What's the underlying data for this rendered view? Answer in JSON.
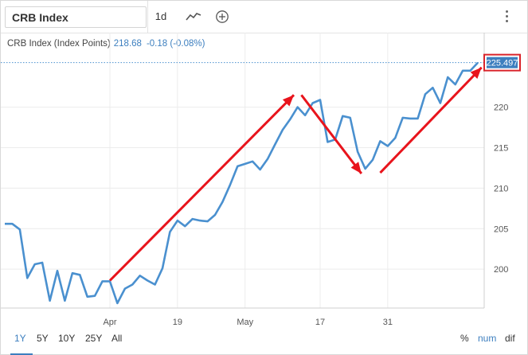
{
  "search": {
    "value": "CRB Index"
  },
  "toolbar": {
    "interval_label": "1d",
    "chart_type_icon": "line-chart-icon",
    "add_icon": "plus-circle-icon",
    "menu_icon": "vertical-dots-icon"
  },
  "legend": {
    "name": "CRB Index (Index Points)",
    "price": "218.68",
    "change": "-0.18 (-0.08%)"
  },
  "ranges": [
    "1Y",
    "5Y",
    "10Y",
    "25Y",
    "All"
  ],
  "active_range": "1Y",
  "options": [
    "%",
    "num",
    "dif"
  ],
  "active_option": "num",
  "colors": {
    "line": "#4a90cf",
    "arrow": "#e8141c",
    "last_price_bg": "#3d7fbf",
    "last_price_border": "#d9242b"
  },
  "chart_data": {
    "type": "line",
    "title": "",
    "xlabel": "",
    "ylabel": "",
    "ylim": [
      195.2,
      229.2
    ],
    "yticks": [
      200,
      205,
      210,
      215,
      220
    ],
    "ytick_labels": [
      "200",
      "205",
      "210",
      "215",
      "220"
    ],
    "xticks": [
      {
        "index": 14,
        "label": "Apr"
      },
      {
        "index": 23,
        "label": "19"
      },
      {
        "index": 32,
        "label": "May"
      },
      {
        "index": 42,
        "label": "17"
      },
      {
        "index": 51,
        "label": "31"
      }
    ],
    "last_value_label": "225.497",
    "grid": true,
    "series": [
      {
        "values": [
          205.6,
          205.6,
          204.9,
          198.9,
          200.6,
          200.8,
          196.1,
          199.8,
          196.1,
          199.5,
          199.3,
          196.6,
          196.7,
          198.5,
          198.5,
          195.8,
          197.6,
          198.1,
          199.2,
          198.6,
          198.1,
          200.1,
          204.6,
          206.0,
          205.3,
          206.2,
          206.0,
          205.9,
          206.7,
          208.3,
          210.4,
          212.7,
          213.0,
          213.3,
          212.3,
          213.6,
          215.4,
          217.2,
          218.5,
          220.0,
          219.0,
          220.5,
          220.9,
          215.7,
          216.0,
          218.9,
          218.7,
          214.5,
          212.4,
          213.5,
          215.8,
          215.2,
          216.2,
          218.7,
          218.6,
          218.6,
          221.6,
          222.4,
          220.5,
          223.7,
          222.8,
          224.5,
          224.5,
          225.5
        ]
      }
    ],
    "annotations": [
      {
        "type": "arrow",
        "from": [
          14,
          198.6
        ],
        "to": [
          38.5,
          221.5
        ]
      },
      {
        "type": "arrow",
        "from": [
          39.5,
          221.5
        ],
        "to": [
          47.5,
          211.8
        ]
      },
      {
        "type": "arrow",
        "from": [
          50,
          211.9
        ],
        "to": [
          63.5,
          224.9
        ]
      }
    ]
  }
}
